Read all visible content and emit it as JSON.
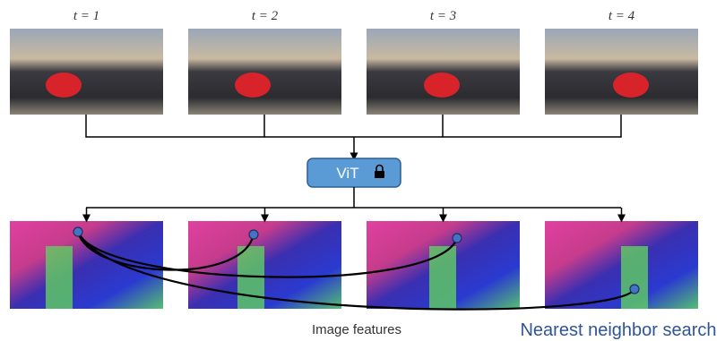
{
  "frames": [
    {
      "label": "t = 1"
    },
    {
      "label": "t = 2"
    },
    {
      "label": "t = 3"
    },
    {
      "label": "t = 4"
    }
  ],
  "model": {
    "label": "ViT"
  },
  "captions": {
    "features": "Image features",
    "search": "Nearest neighbor search"
  }
}
